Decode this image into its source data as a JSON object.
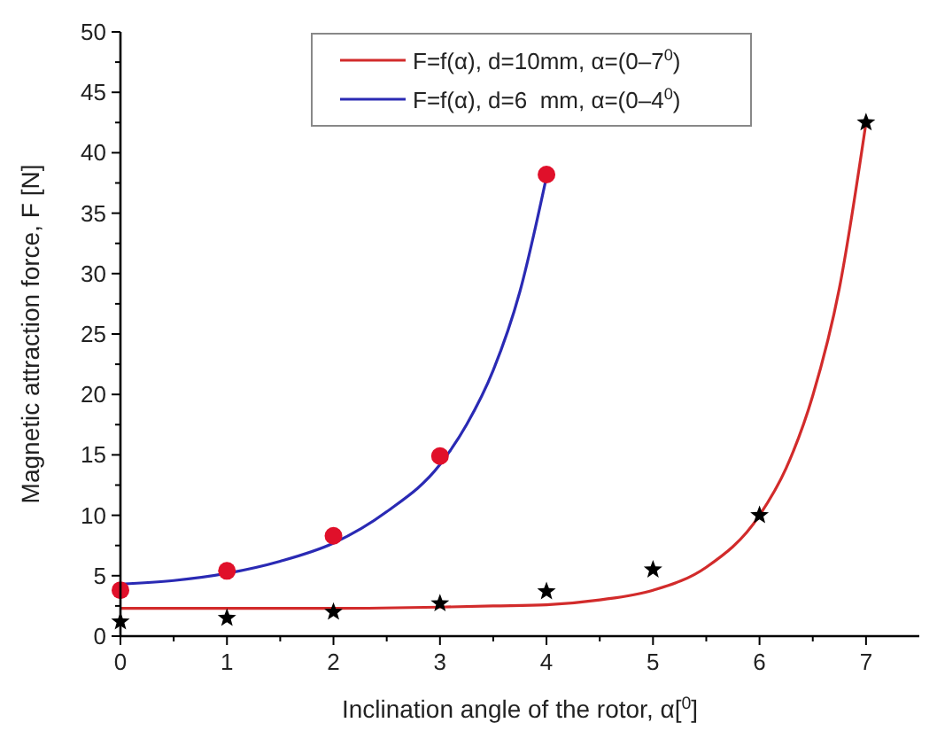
{
  "chart_data": {
    "type": "line",
    "xlabel": "Inclination angle of the rotor, α[$^{0}$]",
    "ylabel": "Magnetic attraction force, F [N]",
    "xlim": [
      0,
      7.5
    ],
    "xticks": [
      0,
      {
        "value": 0.5,
        "label": null
      },
      1,
      {
        "value": 1.5,
        "label": null
      },
      2,
      {
        "value": 2.5,
        "label": null
      },
      3,
      {
        "value": 3.5,
        "label": null
      },
      4,
      {
        "value": 4.5,
        "label": null
      },
      5,
      {
        "value": 5.5,
        "label": null
      },
      6,
      {
        "value": 6.5,
        "label": null
      },
      7
    ],
    "ylim": [
      0,
      50
    ],
    "yticks": [
      0,
      {
        "value": 2.5,
        "label": null
      },
      5,
      {
        "value": 7.5,
        "label": null
      },
      10,
      {
        "value": 12.5,
        "label": null
      },
      15,
      {
        "value": 17.5,
        "label": null
      },
      20,
      {
        "value": 22.5,
        "label": null
      },
      25,
      {
        "value": 27.5,
        "label": null
      },
      30,
      {
        "value": 32.5,
        "label": null
      },
      35,
      {
        "value": 37.5,
        "label": null
      },
      40,
      {
        "value": 42.5,
        "label": null
      },
      45,
      {
        "value": 47.5,
        "label": null
      },
      50
    ],
    "grid": false,
    "legend": "top",
    "line_style": "solid",
    "series": [
      {
        "name": "F=f(α), d=10mm, α=(0–7$^{0}$)",
        "marker": "none",
        "color": "#d22b2b",
        "x": [
          0,
          1,
          2,
          3,
          3.5,
          4,
          4.5,
          5,
          5.5,
          6,
          6.25,
          6.5,
          6.75,
          7
        ],
        "values": [
          2.3,
          2.3,
          2.3,
          2.4,
          2.5,
          2.6,
          3,
          3.8,
          5.7,
          10,
          13.9,
          19.9,
          28.8,
          42.5
        ]
      },
      {
        "name": "F=f(α), d=6  mm, α=(0–4$^{0}$)",
        "marker": "none",
        "color": "#2a2ab4",
        "x": [
          0,
          0.5,
          1,
          1.5,
          2,
          2.5,
          3,
          3.25,
          3.5,
          3.75,
          4
        ],
        "values": [
          4.3,
          4.6,
          5.2,
          6.2,
          7.7,
          10.3,
          14.2,
          17.5,
          22,
          28.5,
          38
        ]
      },
      {
        "type": "scatter",
        "marker": "star",
        "color": "#000000",
        "x": [
          0,
          1,
          2,
          3,
          4,
          5,
          6,
          7
        ],
        "values": [
          1.2,
          1.5,
          2.0,
          2.7,
          3.7,
          5.5,
          10,
          42.5
        ]
      },
      {
        "type": "scatter",
        "marker": "circle",
        "color": "#e0102a",
        "x": [
          0,
          1,
          2,
          3,
          4
        ],
        "values": [
          3.8,
          5.4,
          8.3,
          14.9,
          38.2
        ]
      }
    ]
  }
}
